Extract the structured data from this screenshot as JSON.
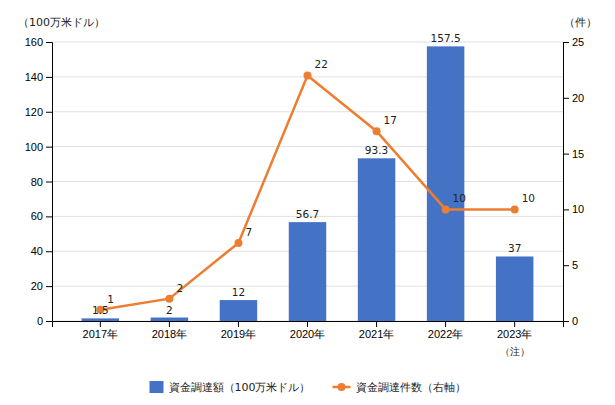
{
  "chart_data": {
    "type": "bar",
    "categories": [
      "2017年",
      "2018年",
      "2019年",
      "2020年",
      "2021年",
      "2022年",
      "2023年"
    ],
    "series": [
      {
        "name": "資金調達額（100万米ドル）",
        "type": "bar",
        "color": "#4472C4",
        "values": [
          1.5,
          2,
          12,
          56.7,
          93.3,
          157.5,
          37
        ],
        "data_labels": true
      },
      {
        "name": "資金調達件数（右軸）",
        "type": "line",
        "color": "#ED7D31",
        "marker": "circle",
        "axis": "y2",
        "values": [
          1,
          2,
          7,
          22,
          17,
          10,
          10
        ],
        "data_labels": true
      }
    ],
    "ylabel": "（100万米ドル）",
    "y2label": "（件）",
    "ylim": [
      0,
      160
    ],
    "yticks": [
      0,
      20,
      40,
      60,
      80,
      100,
      120,
      140,
      160
    ],
    "y2lim": [
      0,
      25
    ],
    "y2ticks": [
      0,
      5,
      10,
      15,
      20,
      25
    ],
    "annotation": "（注）",
    "grid": true,
    "legend": "bottom"
  }
}
